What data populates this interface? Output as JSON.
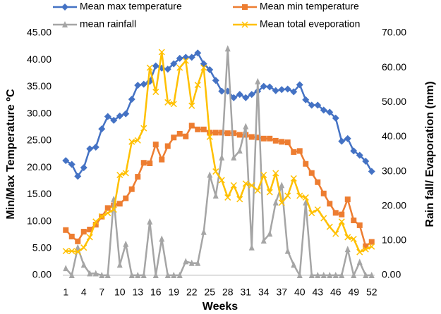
{
  "chart_data": {
    "type": "line",
    "x": [
      1,
      2,
      3,
      4,
      5,
      6,
      7,
      8,
      9,
      10,
      11,
      12,
      13,
      14,
      15,
      16,
      17,
      18,
      19,
      20,
      21,
      22,
      23,
      24,
      25,
      26,
      27,
      28,
      29,
      30,
      31,
      32,
      33,
      34,
      35,
      36,
      37,
      38,
      39,
      40,
      41,
      42,
      43,
      44,
      45,
      46,
      47,
      48,
      49,
      50,
      51,
      52
    ],
    "xlim": [
      0.5,
      52.5
    ],
    "xticks": [
      1,
      4,
      7,
      10,
      13,
      16,
      19,
      22,
      25,
      28,
      31,
      34,
      37,
      40,
      43,
      46,
      49,
      52
    ],
    "xlabel": "Weeks",
    "ylabel": "Min/Max Temperature ºC",
    "y2label": "Rain fall/ Evaporation (mm)",
    "ylim": [
      0,
      45
    ],
    "yticks": [
      {
        "value": 0,
        "label": "0.00"
      },
      {
        "value": 5,
        "label": "5.00"
      },
      {
        "value": 10,
        "label": "10.00"
      },
      {
        "value": 15,
        "label": "15.00"
      },
      {
        "value": 20,
        "label": "20.00"
      },
      {
        "value": 25,
        "label": "25.00"
      },
      {
        "value": 30,
        "label": "30.00"
      },
      {
        "value": 35,
        "label": "35.00"
      },
      {
        "value": 40,
        "label": "40.00"
      },
      {
        "value": 45,
        "label": "45.00"
      }
    ],
    "y2lim": [
      0,
      70
    ],
    "y2ticks": [
      {
        "value": 0,
        "label": "0.00"
      },
      {
        "value": 10,
        "label": "10.00"
      },
      {
        "value": 20,
        "label": "20.00"
      },
      {
        "value": 30,
        "label": "30.00"
      },
      {
        "value": 40,
        "label": "40.00"
      },
      {
        "value": 50,
        "label": "50.00"
      },
      {
        "value": 60,
        "label": "60.00"
      },
      {
        "value": 70,
        "label": "70.00"
      }
    ],
    "grid": false,
    "series": [
      {
        "name": "Mean max temperature",
        "color": "#4472c4",
        "marker": "diamond",
        "values": [
          21.3,
          20.6,
          18.4,
          20,
          23.5,
          23.8,
          27.2,
          29.5,
          28.8,
          29.6,
          30,
          32.7,
          35.3,
          35.5,
          36,
          38.9,
          38.5,
          38.3,
          39.3,
          40.3,
          40.5,
          40.5,
          41.3,
          39.3,
          38.2,
          36.2,
          34.2,
          34.2,
          33,
          33.6,
          33,
          33.6,
          34.2,
          35.1,
          35,
          34.3,
          34.5,
          34.6,
          34.1,
          35.4,
          32.6,
          31.6,
          31.6,
          30.7,
          30.3,
          29.2,
          24.9,
          25.4,
          23.1,
          22.3,
          21.2,
          19.3
        ]
      },
      {
        "name": "Mean min temperature",
        "color": "#ed7d31",
        "marker": "square",
        "values": [
          8.4,
          7.2,
          6.3,
          8.1,
          8.5,
          9.4,
          10.9,
          12.5,
          13,
          13.3,
          14.3,
          16,
          18.3,
          20.9,
          20.8,
          24.3,
          21.5,
          24,
          25.6,
          26.3,
          25.8,
          27.8,
          27.1,
          27.1,
          26.5,
          26.5,
          26.5,
          26.4,
          26.4,
          26.1,
          26.1,
          25.7,
          25.6,
          25.4,
          25.4,
          25,
          24.8,
          24.7,
          22.9,
          23.1,
          20.7,
          19,
          17.3,
          15.2,
          13.3,
          11.6,
          11.3,
          14.1,
          10.2,
          9.3,
          5.4,
          6.2
        ]
      },
      {
        "name": "mean rainfall",
        "color": "#a5a5a5",
        "marker": "triangle",
        "axis": "y2",
        "values": [
          2,
          0,
          8,
          3,
          0.5,
          0.5,
          0,
          0,
          22,
          3,
          9,
          0,
          0,
          0,
          15.5,
          0,
          10.5,
          0,
          0,
          0,
          4,
          3.5,
          3.5,
          12.5,
          29,
          23,
          34,
          65.5,
          34,
          36,
          43,
          8,
          56,
          10,
          12,
          21,
          26,
          7,
          3,
          0,
          21,
          0,
          0,
          0,
          0,
          0,
          0,
          7.5,
          0,
          3.8,
          0,
          0
        ]
      },
      {
        "name": "Mean total eveporation",
        "color": "#ffc000",
        "marker": "x",
        "axis": "y2",
        "values": [
          7,
          7,
          6.8,
          8,
          11,
          15.5,
          17,
          18,
          19,
          29,
          29.5,
          38.6,
          39,
          42.5,
          60,
          53,
          64.5,
          50,
          49.5,
          60,
          62,
          49,
          55,
          60,
          40,
          30,
          27.5,
          22.5,
          26,
          22,
          26.5,
          26,
          24.5,
          29,
          24,
          29.5,
          21,
          23,
          28,
          23,
          22.5,
          18,
          19,
          16.5,
          14,
          12,
          15.5,
          11,
          10.5,
          6.7,
          7.5,
          8.3
        ]
      }
    ]
  }
}
